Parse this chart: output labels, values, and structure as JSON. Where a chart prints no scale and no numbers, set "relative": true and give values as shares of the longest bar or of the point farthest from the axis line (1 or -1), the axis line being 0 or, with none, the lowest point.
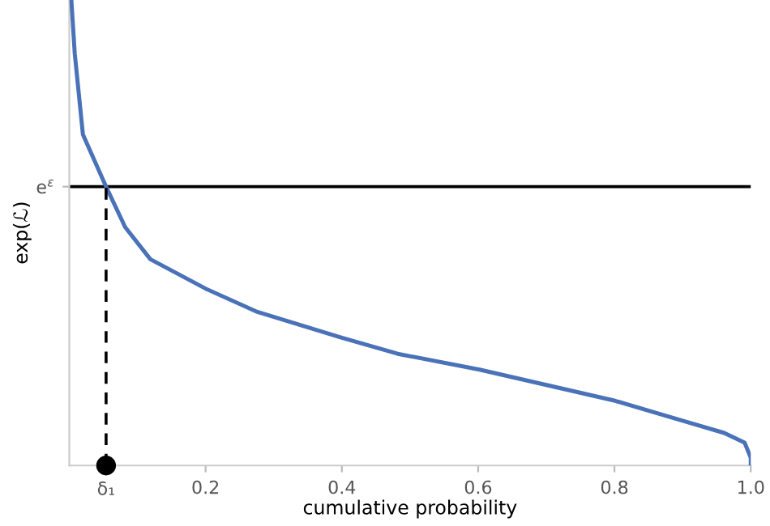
{
  "chart_data": {
    "type": "line",
    "xlabel": "cumulative probability",
    "ylabel": "exp(ℒ)",
    "relative": true,
    "xlim": [
      0,
      1.0
    ],
    "xticks": [
      0.2,
      0.4,
      0.6,
      0.8,
      {
        "value": 1.0,
        "label": "1.0"
      }
    ],
    "series": [
      {
        "color": "#4a72b8",
        "line_style": "solid",
        "x": [
          0.003,
          0.008,
          0.02,
          0.054,
          0.082,
          0.119,
          0.2,
          0.274,
          0.399,
          0.482,
          0.602,
          0.801,
          0.905,
          0.961,
          0.991,
          1.0,
          1.0
        ],
        "values": [
          1.0,
          0.885,
          0.711,
          0.599,
          0.512,
          0.443,
          0.38,
          0.331,
          0.275,
          0.24,
          0.206,
          0.139,
          0.094,
          0.07,
          0.049,
          0.017,
          0.0
        ]
      },
      {
        "type": "line",
        "color": "#000000",
        "line_style": "dashed",
        "x": [
          0.054,
          0.054
        ],
        "values": [
          0.0,
          0.599
        ]
      },
      {
        "type": "scatter",
        "color": "#000000",
        "marker": "circle",
        "x": [
          0.054
        ],
        "values": [
          0.0
        ]
      }
    ],
    "ref_lines": [
      {
        "axis": "y",
        "value": 0.599,
        "label": "e$^{ε}$",
        "color": "#000000"
      }
    ],
    "annotations": [
      {
        "text": "δ₁",
        "x": 0.054,
        "y": 0.0
      }
    ],
    "grid": false,
    "legend": false
  }
}
